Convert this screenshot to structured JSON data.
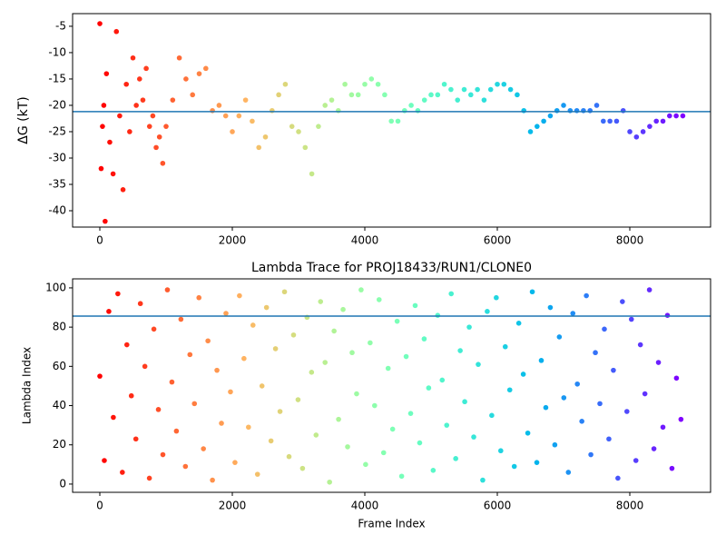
{
  "chart_data": [
    {
      "type": "scatter",
      "ylabel": "ΔG (kT)",
      "colormap": "rainbow_r",
      "x": [
        0,
        20,
        40,
        60,
        80,
        100,
        150,
        200,
        250,
        300,
        350,
        400,
        450,
        500,
        550,
        600,
        650,
        700,
        750,
        800,
        850,
        900,
        950,
        1000,
        1100,
        1200,
        1300,
        1400,
        1500,
        1600,
        1700,
        1800,
        1900,
        2000,
        2100,
        2200,
        2300,
        2400,
        2500,
        2600,
        2700,
        2800,
        2900,
        3000,
        3100,
        3200,
        3300,
        3400,
        3500,
        3600,
        3700,
        3800,
        3900,
        4000,
        4100,
        4200,
        4300,
        4400,
        4500,
        4600,
        4700,
        4800,
        4900,
        5000,
        5100,
        5200,
        5300,
        5400,
        5500,
        5600,
        5700,
        5800,
        5900,
        6000,
        6100,
        6200,
        6300,
        6400,
        6500,
        6600,
        6700,
        6800,
        6900,
        7000,
        7100,
        7200,
        7300,
        7400,
        7500,
        7600,
        7700,
        7800,
        7900,
        8000,
        8100,
        8200,
        8300,
        8400,
        8500,
        8600,
        8700,
        8800
      ],
      "values": [
        -4.5,
        -32,
        -24,
        -20,
        -42,
        -14,
        -27,
        -33,
        -6,
        -22,
        -36,
        -16,
        -25,
        -11,
        -20,
        -15,
        -19,
        -13,
        -24,
        -22,
        -28,
        -26,
        -31,
        -24,
        -19,
        -11,
        -15,
        -18,
        -14,
        -13,
        -21,
        -20,
        -22,
        -25,
        -22,
        -19,
        -23,
        -28,
        -26,
        -21,
        -18,
        -16,
        -24,
        -25,
        -28,
        -33,
        -24,
        -20,
        -19,
        -21,
        -16,
        -18,
        -18,
        -16,
        -15,
        -16,
        -18,
        -23,
        -23,
        -21,
        -20,
        -21,
        -19,
        -18,
        -18,
        -16,
        -17,
        -19,
        -17,
        -18,
        -17,
        -19,
        -17,
        -16,
        -16,
        -17,
        -18,
        -21,
        -25,
        -24,
        -23,
        -22,
        -21,
        -20,
        -21,
        -21,
        -21,
        -21,
        -20,
        -23,
        -23,
        -23,
        -21,
        -25,
        -26,
        -25,
        -24,
        -23,
        -23,
        -22,
        -22,
        -22
      ],
      "hline": -21.2,
      "hline_color": "#1f77b4",
      "xlim": [
        -411,
        9219
      ],
      "xticks": [
        0,
        2000,
        4000,
        6000,
        8000
      ],
      "ylim": [
        -43.1,
        -2.6
      ],
      "yticks": [
        -40,
        -35,
        -30,
        -25,
        -20,
        -15,
        -10,
        -5
      ]
    },
    {
      "type": "scatter",
      "title": "Lambda Trace for PROJ18433/RUN1/CLONE0",
      "xlabel": "Frame Index",
      "ylabel": "Lambda Index",
      "colormap": "rainbow_r",
      "x": [
        0,
        68,
        136,
        204,
        272,
        340,
        408,
        476,
        544,
        612,
        680,
        748,
        816,
        884,
        952,
        1020,
        1088,
        1156,
        1224,
        1292,
        1360,
        1428,
        1496,
        1564,
        1632,
        1700,
        1768,
        1836,
        1904,
        1972,
        2040,
        2108,
        2176,
        2244,
        2312,
        2380,
        2448,
        2516,
        2584,
        2652,
        2720,
        2788,
        2856,
        2924,
        2992,
        3060,
        3128,
        3196,
        3264,
        3332,
        3400,
        3468,
        3536,
        3604,
        3672,
        3740,
        3808,
        3876,
        3944,
        4012,
        4080,
        4148,
        4216,
        4284,
        4352,
        4420,
        4488,
        4556,
        4624,
        4692,
        4760,
        4828,
        4896,
        4964,
        5032,
        5100,
        5168,
        5236,
        5304,
        5372,
        5440,
        5508,
        5576,
        5644,
        5712,
        5780,
        5848,
        5916,
        5984,
        6052,
        6120,
        6188,
        6256,
        6324,
        6392,
        6460,
        6528,
        6596,
        6664,
        6732,
        6800,
        6868,
        6936,
        7004,
        7072,
        7140,
        7208,
        7276,
        7344,
        7412,
        7480,
        7548,
        7616,
        7684,
        7752,
        7820,
        7888,
        7956,
        8024,
        8092,
        8160,
        8228,
        8296,
        8364,
        8432,
        8500,
        8568,
        8636,
        8704,
        8772
      ],
      "values": [
        55,
        12,
        88,
        34,
        97,
        6,
        71,
        45,
        23,
        92,
        60,
        3,
        79,
        38,
        15,
        99,
        52,
        27,
        84,
        9,
        66,
        41,
        95,
        18,
        73,
        2,
        58,
        31,
        87,
        47,
        11,
        96,
        64,
        29,
        81,
        5,
        50,
        90,
        22,
        69,
        37,
        98,
        14,
        76,
        43,
        8,
        85,
        57,
        25,
        93,
        62,
        1,
        78,
        33,
        89,
        19,
        67,
        46,
        99,
        10,
        72,
        40,
        94,
        16,
        59,
        28,
        83,
        4,
        65,
        36,
        91,
        21,
        74,
        49,
        7,
        86,
        53,
        30,
        97,
        13,
        68,
        42,
        80,
        24,
        61,
        2,
        88,
        35,
        95,
        17,
        70,
        48,
        9,
        82,
        56,
        26,
        98,
        11,
        63,
        39,
        90,
        20,
        75,
        44,
        6,
        87,
        51,
        32,
        96,
        15,
        67,
        41,
        79,
        23,
        58,
        3,
        93,
        37,
        84,
        12,
        71,
        46,
        99,
        18,
        62,
        29,
        86,
        8,
        54,
        33
      ],
      "hline": 85.6,
      "hline_color": "#1f77b4",
      "xlim": [
        -411,
        9219
      ],
      "xticks": [
        0,
        2000,
        4000,
        6000,
        8000
      ],
      "ylim": [
        -4.2,
        104.6
      ],
      "yticks": [
        0,
        20,
        40,
        60,
        80,
        100
      ]
    }
  ]
}
